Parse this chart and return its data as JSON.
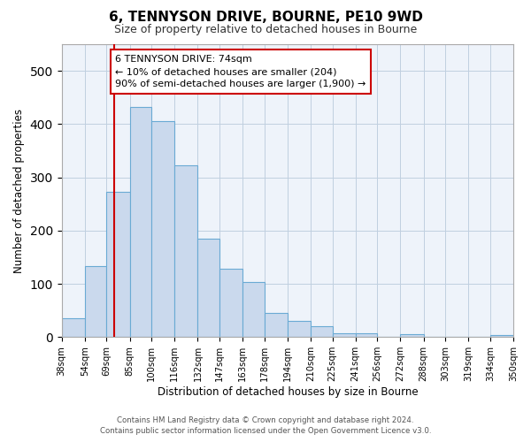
{
  "title": "6, TENNYSON DRIVE, BOURNE, PE10 9WD",
  "subtitle": "Size of property relative to detached houses in Bourne",
  "xlabel": "Distribution of detached houses by size in Bourne",
  "ylabel": "Number of detached properties",
  "bin_edges": [
    38,
    54,
    69,
    85,
    100,
    116,
    132,
    147,
    163,
    178,
    194,
    210,
    225,
    241,
    256,
    272,
    288,
    303,
    319,
    334,
    350
  ],
  "bin_labels": [
    "38sqm",
    "54sqm",
    "69sqm",
    "85sqm",
    "100sqm",
    "116sqm",
    "132sqm",
    "147sqm",
    "163sqm",
    "178sqm",
    "194sqm",
    "210sqm",
    "225sqm",
    "241sqm",
    "256sqm",
    "272sqm",
    "288sqm",
    "303sqm",
    "319sqm",
    "334sqm",
    "350sqm"
  ],
  "bar_heights": [
    35,
    133,
    272,
    432,
    405,
    323,
    184,
    128,
    103,
    45,
    30,
    20,
    8,
    8,
    0,
    5,
    0,
    0,
    0,
    4
  ],
  "bar_color": "#cad9ed",
  "bar_edge_color": "#6aaad4",
  "vline_x": 74,
  "vline_color": "#cc0000",
  "ylim": [
    0,
    550
  ],
  "annotation_text": "6 TENNYSON DRIVE: 74sqm\n← 10% of detached houses are smaller (204)\n90% of semi-detached houses are larger (1,900) →",
  "annotation_box_color": "#ffffff",
  "annotation_box_edge": "#cc0000",
  "footer_line1": "Contains HM Land Registry data © Crown copyright and database right 2024.",
  "footer_line2": "Contains public sector information licensed under the Open Government Licence v3.0.",
  "bg_color": "#eef3fa"
}
